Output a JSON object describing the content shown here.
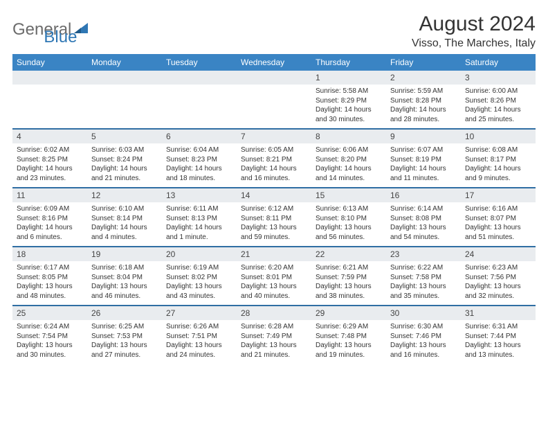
{
  "brand": {
    "word1": "General",
    "word2": "Blue"
  },
  "header": {
    "month_title": "August 2024",
    "location": "Visso, The Marches, Italy"
  },
  "colors": {
    "header_bg": "#3a84c4",
    "row_divider": "#2f6ea3",
    "daynum_bg": "#e9ecef",
    "logo_gray": "#6b6b6b",
    "logo_blue": "#2f77b4"
  },
  "typography": {
    "title_fontsize": 30,
    "location_fontsize": 16,
    "dayhead_fontsize": 12,
    "body_fontsize": 10
  },
  "day_headers": [
    "Sunday",
    "Monday",
    "Tuesday",
    "Wednesday",
    "Thursday",
    "Friday",
    "Saturday"
  ],
  "weeks": [
    [
      null,
      null,
      null,
      null,
      {
        "n": "1",
        "sr": "Sunrise: 5:58 AM",
        "ss": "Sunset: 8:29 PM",
        "dl": "Daylight: 14 hours and 30 minutes."
      },
      {
        "n": "2",
        "sr": "Sunrise: 5:59 AM",
        "ss": "Sunset: 8:28 PM",
        "dl": "Daylight: 14 hours and 28 minutes."
      },
      {
        "n": "3",
        "sr": "Sunrise: 6:00 AM",
        "ss": "Sunset: 8:26 PM",
        "dl": "Daylight: 14 hours and 25 minutes."
      }
    ],
    [
      {
        "n": "4",
        "sr": "Sunrise: 6:02 AM",
        "ss": "Sunset: 8:25 PM",
        "dl": "Daylight: 14 hours and 23 minutes."
      },
      {
        "n": "5",
        "sr": "Sunrise: 6:03 AM",
        "ss": "Sunset: 8:24 PM",
        "dl": "Daylight: 14 hours and 21 minutes."
      },
      {
        "n": "6",
        "sr": "Sunrise: 6:04 AM",
        "ss": "Sunset: 8:23 PM",
        "dl": "Daylight: 14 hours and 18 minutes."
      },
      {
        "n": "7",
        "sr": "Sunrise: 6:05 AM",
        "ss": "Sunset: 8:21 PM",
        "dl": "Daylight: 14 hours and 16 minutes."
      },
      {
        "n": "8",
        "sr": "Sunrise: 6:06 AM",
        "ss": "Sunset: 8:20 PM",
        "dl": "Daylight: 14 hours and 14 minutes."
      },
      {
        "n": "9",
        "sr": "Sunrise: 6:07 AM",
        "ss": "Sunset: 8:19 PM",
        "dl": "Daylight: 14 hours and 11 minutes."
      },
      {
        "n": "10",
        "sr": "Sunrise: 6:08 AM",
        "ss": "Sunset: 8:17 PM",
        "dl": "Daylight: 14 hours and 9 minutes."
      }
    ],
    [
      {
        "n": "11",
        "sr": "Sunrise: 6:09 AM",
        "ss": "Sunset: 8:16 PM",
        "dl": "Daylight: 14 hours and 6 minutes."
      },
      {
        "n": "12",
        "sr": "Sunrise: 6:10 AM",
        "ss": "Sunset: 8:14 PM",
        "dl": "Daylight: 14 hours and 4 minutes."
      },
      {
        "n": "13",
        "sr": "Sunrise: 6:11 AM",
        "ss": "Sunset: 8:13 PM",
        "dl": "Daylight: 14 hours and 1 minute."
      },
      {
        "n": "14",
        "sr": "Sunrise: 6:12 AM",
        "ss": "Sunset: 8:11 PM",
        "dl": "Daylight: 13 hours and 59 minutes."
      },
      {
        "n": "15",
        "sr": "Sunrise: 6:13 AM",
        "ss": "Sunset: 8:10 PM",
        "dl": "Daylight: 13 hours and 56 minutes."
      },
      {
        "n": "16",
        "sr": "Sunrise: 6:14 AM",
        "ss": "Sunset: 8:08 PM",
        "dl": "Daylight: 13 hours and 54 minutes."
      },
      {
        "n": "17",
        "sr": "Sunrise: 6:16 AM",
        "ss": "Sunset: 8:07 PM",
        "dl": "Daylight: 13 hours and 51 minutes."
      }
    ],
    [
      {
        "n": "18",
        "sr": "Sunrise: 6:17 AM",
        "ss": "Sunset: 8:05 PM",
        "dl": "Daylight: 13 hours and 48 minutes."
      },
      {
        "n": "19",
        "sr": "Sunrise: 6:18 AM",
        "ss": "Sunset: 8:04 PM",
        "dl": "Daylight: 13 hours and 46 minutes."
      },
      {
        "n": "20",
        "sr": "Sunrise: 6:19 AM",
        "ss": "Sunset: 8:02 PM",
        "dl": "Daylight: 13 hours and 43 minutes."
      },
      {
        "n": "21",
        "sr": "Sunrise: 6:20 AM",
        "ss": "Sunset: 8:01 PM",
        "dl": "Daylight: 13 hours and 40 minutes."
      },
      {
        "n": "22",
        "sr": "Sunrise: 6:21 AM",
        "ss": "Sunset: 7:59 PM",
        "dl": "Daylight: 13 hours and 38 minutes."
      },
      {
        "n": "23",
        "sr": "Sunrise: 6:22 AM",
        "ss": "Sunset: 7:58 PM",
        "dl": "Daylight: 13 hours and 35 minutes."
      },
      {
        "n": "24",
        "sr": "Sunrise: 6:23 AM",
        "ss": "Sunset: 7:56 PM",
        "dl": "Daylight: 13 hours and 32 minutes."
      }
    ],
    [
      {
        "n": "25",
        "sr": "Sunrise: 6:24 AM",
        "ss": "Sunset: 7:54 PM",
        "dl": "Daylight: 13 hours and 30 minutes."
      },
      {
        "n": "26",
        "sr": "Sunrise: 6:25 AM",
        "ss": "Sunset: 7:53 PM",
        "dl": "Daylight: 13 hours and 27 minutes."
      },
      {
        "n": "27",
        "sr": "Sunrise: 6:26 AM",
        "ss": "Sunset: 7:51 PM",
        "dl": "Daylight: 13 hours and 24 minutes."
      },
      {
        "n": "28",
        "sr": "Sunrise: 6:28 AM",
        "ss": "Sunset: 7:49 PM",
        "dl": "Daylight: 13 hours and 21 minutes."
      },
      {
        "n": "29",
        "sr": "Sunrise: 6:29 AM",
        "ss": "Sunset: 7:48 PM",
        "dl": "Daylight: 13 hours and 19 minutes."
      },
      {
        "n": "30",
        "sr": "Sunrise: 6:30 AM",
        "ss": "Sunset: 7:46 PM",
        "dl": "Daylight: 13 hours and 16 minutes."
      },
      {
        "n": "31",
        "sr": "Sunrise: 6:31 AM",
        "ss": "Sunset: 7:44 PM",
        "dl": "Daylight: 13 hours and 13 minutes."
      }
    ]
  ]
}
